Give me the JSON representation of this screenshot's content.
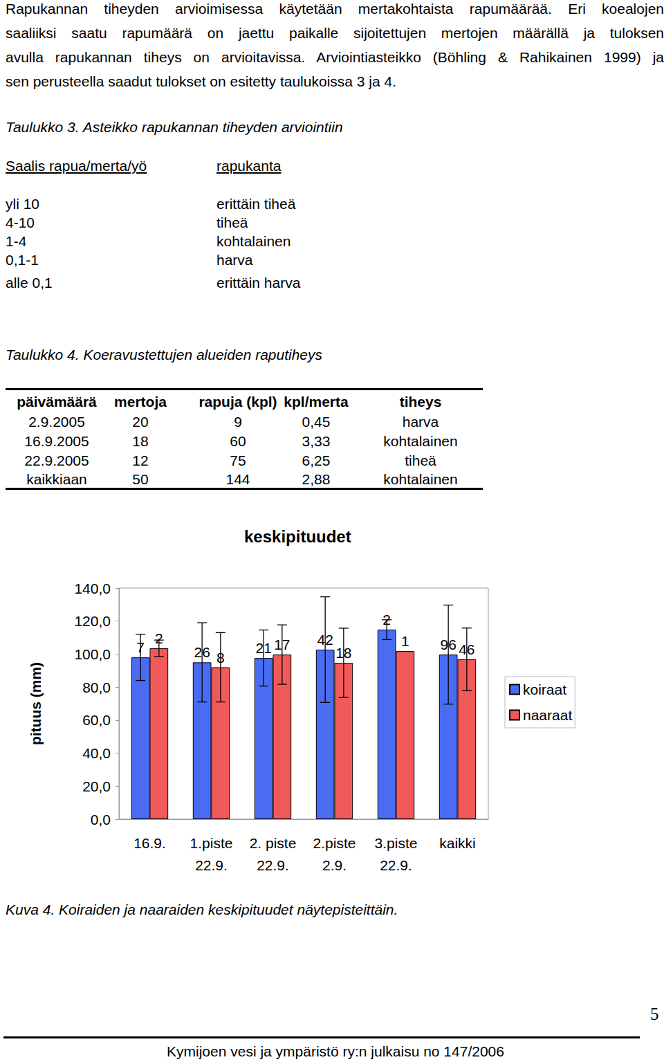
{
  "page": {
    "intro_lines": [
      "Rapukannan tiheyden arvioimisessa käytetään mertakohtaista rapumäärää. Eri koealojen",
      "saaliiksi saatu rapumäärä on jaettu paikalle sijoitettujen mertojen määrällä ja tuloksen",
      "avulla rapukannan tiheys on arvioitavissa. Arviointiasteikko (Böhling & Rahikainen 1999) ja",
      "sen perusteella saadut tulokset on esitetty taulukoissa 3 ja 4."
    ],
    "table3": {
      "caption": "Taulukko 3. Asteikko rapukannan tiheyden arviointiin",
      "header": [
        "Saalis rapua/merta/yö",
        "rapukanta"
      ],
      "rows": [
        [
          "yli 10",
          "erittäin tiheä"
        ],
        [
          "4-10",
          "tiheä"
        ],
        [
          "1-4",
          "kohtalainen"
        ],
        [
          "0,1-1",
          "harva"
        ],
        [
          "alle 0,1",
          "erittäin harva"
        ]
      ]
    },
    "table4": {
      "caption": "Taulukko 4. Koeravustettujen alueiden raputiheys",
      "header": [
        "päivämäärä",
        "mertoja",
        "rapuja (kpl)",
        "kpl/merta",
        "tiheys"
      ],
      "rows": [
        [
          "2.9.2005",
          "20",
          "9",
          "0,45",
          "harva"
        ],
        [
          "16.9.2005",
          "18",
          "60",
          "3,33",
          "kohtalainen"
        ],
        [
          "22.9.2005",
          "12",
          "75",
          "6,25",
          "tiheä"
        ],
        [
          "kaikkiaan",
          "50",
          "144",
          "2,88",
          "kohtalainen"
        ]
      ]
    },
    "figure_caption": "Kuva 4. Koiraiden ja naaraiden keskipituudet näytepisteittäin.",
    "page_number": "5",
    "footer": "Kymijoen vesi ja ympäristö ry:n julkaisu no 147/2006"
  },
  "chart_data": {
    "type": "bar",
    "title": "keskipituudet",
    "y_label": "pituus (mm)",
    "categories": [
      "16.9.",
      "1.piste\n22.9.",
      "2. piste\n22.9.",
      "2.piste\n2.9.",
      "3.piste\n22.9.",
      "kaikki"
    ],
    "series": [
      {
        "name": "koiraat",
        "color": "#4a6cf2",
        "values": [
          98,
          95,
          97.6,
          102.7,
          114.8,
          99.7
        ],
        "errors": [
          14,
          24,
          17,
          32,
          6,
          30
        ],
        "counts": [
          7,
          26,
          21,
          42,
          2,
          96
        ]
      },
      {
        "name": "naaraat",
        "color": "#f25a5a",
        "values": [
          103.5,
          92,
          99.7,
          94.7,
          101.8,
          96.8
        ],
        "errors": [
          5,
          21,
          18,
          21,
          null,
          19
        ],
        "counts": [
          2,
          8,
          17,
          18,
          1,
          46
        ]
      }
    ],
    "ylim": [
      0,
      140
    ],
    "yticks": [
      {
        "value": 0,
        "label": "0,0"
      },
      {
        "value": 20,
        "label": "20,0"
      },
      {
        "value": 40,
        "label": "40,0"
      },
      {
        "value": 60,
        "label": "60,0"
      },
      {
        "value": 80,
        "label": "80,0"
      },
      {
        "value": 100,
        "label": "100,0"
      },
      {
        "value": 120,
        "label": "120,0"
      },
      {
        "value": 140,
        "label": "140,0"
      }
    ],
    "grid": false,
    "legend": "right"
  }
}
